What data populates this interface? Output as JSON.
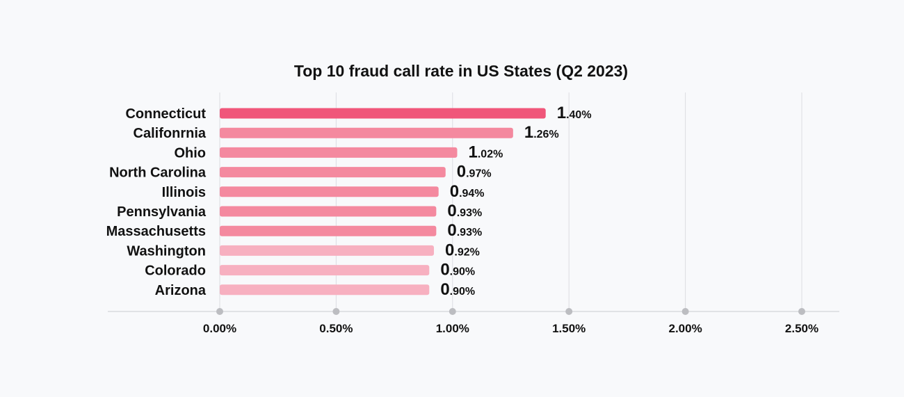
{
  "chart_data": {
    "type": "bar",
    "orientation": "horizontal",
    "title": "Top 10 fraud call rate in US States (Q2 2023)",
    "categories": [
      "Connecticut",
      "Califonrnia",
      "Ohio",
      "North Carolina",
      "Illinois",
      "Pennsylvania",
      "Massachusetts",
      "Washington",
      "Colorado",
      "Arizona"
    ],
    "values": [
      1.4,
      1.26,
      1.02,
      0.97,
      0.94,
      0.93,
      0.93,
      0.92,
      0.9,
      0.9
    ],
    "value_labels": [
      {
        "lead": "1",
        "rest": ".40%"
      },
      {
        "lead": "1",
        "rest": ".26%"
      },
      {
        "lead": "1",
        "rest": ".02%"
      },
      {
        "lead": "0",
        "rest": ".97%"
      },
      {
        "lead": "0",
        "rest": ".94%"
      },
      {
        "lead": "0",
        "rest": ".93%"
      },
      {
        "lead": "0",
        "rest": ".93%"
      },
      {
        "lead": "0",
        "rest": ".92%"
      },
      {
        "lead": "0",
        "rest": ".90%"
      },
      {
        "lead": "0",
        "rest": ".90%"
      }
    ],
    "bar_colors": [
      "#f0567a",
      "#f4899f",
      "#f4899f",
      "#f4899f",
      "#f4899f",
      "#f4899f",
      "#f4899f",
      "#f7b0c0",
      "#f7b0c0",
      "#f7b0c0"
    ],
    "xlim": [
      0,
      2.5
    ],
    "x_ticks": [
      0,
      0.5,
      1.0,
      1.5,
      2.0,
      2.5
    ],
    "x_tick_labels": [
      "0.00%",
      "0.50%",
      "1.00%",
      "1.50%",
      "2.00%",
      "2.50%"
    ],
    "xlabel": "",
    "ylabel": "",
    "grid": true,
    "legend": "none"
  }
}
